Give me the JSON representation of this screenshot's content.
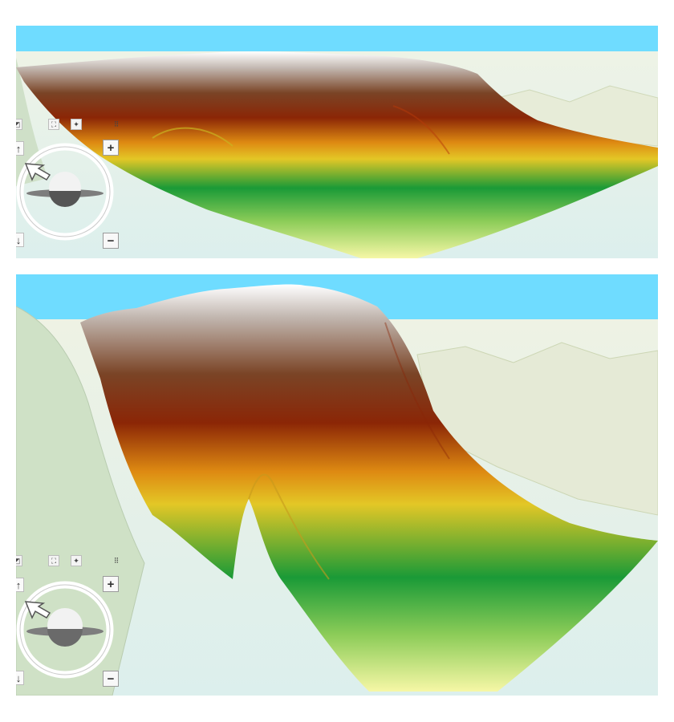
{
  "views": [
    {
      "id": "top",
      "toolbar": {
        "tools": [
          "pan-icon",
          "zoom-extent-icon",
          "walk-icon",
          "measure-icon"
        ]
      },
      "controls": {
        "zoom_in_label": "+",
        "zoom_out_label": "−",
        "tilt_up_label": "↑",
        "tilt_down_label": "↓"
      }
    },
    {
      "id": "bottom",
      "toolbar": {
        "tools": [
          "pan-icon",
          "zoom-extent-icon",
          "walk-icon",
          "measure-icon"
        ]
      },
      "controls": {
        "zoom_in_label": "+",
        "zoom_out_label": "−",
        "tilt_up_label": "↑",
        "tilt_down_label": "↓"
      }
    }
  ],
  "colors": {
    "sky": "#6fdcff",
    "basemap": "#dff0ee",
    "terrain_ramp": [
      "#f6f7a6",
      "#8ccc58",
      "#1a9a37",
      "#e3c726",
      "#de8a12",
      "#8b2606",
      "#7a4426",
      "#c2b7b0",
      "#ffffff"
    ]
  }
}
